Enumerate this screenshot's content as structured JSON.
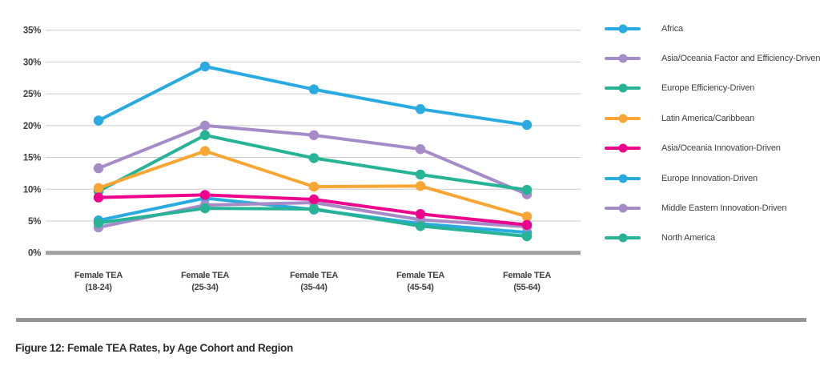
{
  "figure": {
    "caption": "Figure 12: Female TEA Rates, by Age Cohort and Region"
  },
  "colors": {
    "cyan": "#29ABE2",
    "purple": "#A58CC8",
    "teal": "#26B396",
    "orange": "#FAA635",
    "magenta": "#EC008C",
    "gridline": "#CCCCCC",
    "zero_axis": "#A0A0A3",
    "divider": "#949599",
    "tick_text": "#414042"
  },
  "chart_data": {
    "type": "line",
    "title": "",
    "xlabel": "",
    "ylabel": "",
    "ylim": [
      0,
      35
    ],
    "y_tick_values": [
      35,
      30,
      25,
      20,
      15,
      10,
      5,
      0
    ],
    "y_tick_labels": [
      "35%",
      "30%",
      "25%",
      "20%",
      "15%",
      "10%",
      "5%",
      "0%"
    ],
    "grid": true,
    "legend_position": "right",
    "categories": [
      [
        "Female TEA",
        "(18-24)"
      ],
      [
        "Female TEA",
        "(25-34)"
      ],
      [
        "Female TEA",
        "(35-44)"
      ],
      [
        "Female TEA",
        "(45-54)"
      ],
      [
        "Female TEA",
        "(55-64)"
      ]
    ],
    "series": [
      {
        "name": "Africa",
        "color": "#29ABE2",
        "values": [
          20.8,
          29.3,
          25.7,
          22.6,
          20.1
        ]
      },
      {
        "name": "Asia/Oceania Factor and Efficiency-Driven",
        "color": "#A58CC8",
        "values": [
          13.3,
          20.0,
          18.5,
          16.3,
          9.2
        ]
      },
      {
        "name": "Europe Efficiency-Driven",
        "color": "#26B396",
        "values": [
          9.7,
          18.5,
          14.9,
          12.3,
          9.9
        ]
      },
      {
        "name": "Latin America/Caribbean",
        "color": "#FAA635",
        "values": [
          10.2,
          16.0,
          10.4,
          10.5,
          5.7
        ]
      },
      {
        "name": "Asia/Oceania Innovation-Driven",
        "color": "#EC008C",
        "values": [
          8.7,
          9.1,
          8.4,
          6.1,
          4.4
        ]
      },
      {
        "name": "Europe Innovation-Driven",
        "color": "#29ABE2",
        "values": [
          5.1,
          8.6,
          6.8,
          4.6,
          3.2
        ]
      },
      {
        "name": "Middle Eastern Innovation-Driven",
        "color": "#A58CC8",
        "values": [
          4.0,
          7.5,
          7.9,
          5.2,
          4.1
        ]
      },
      {
        "name": "North America",
        "color": "#26B396",
        "values": [
          4.7,
          7.0,
          6.9,
          4.2,
          2.6
        ]
      }
    ],
    "draw_order": [
      0,
      1,
      2,
      3,
      5,
      6,
      4,
      7
    ]
  }
}
